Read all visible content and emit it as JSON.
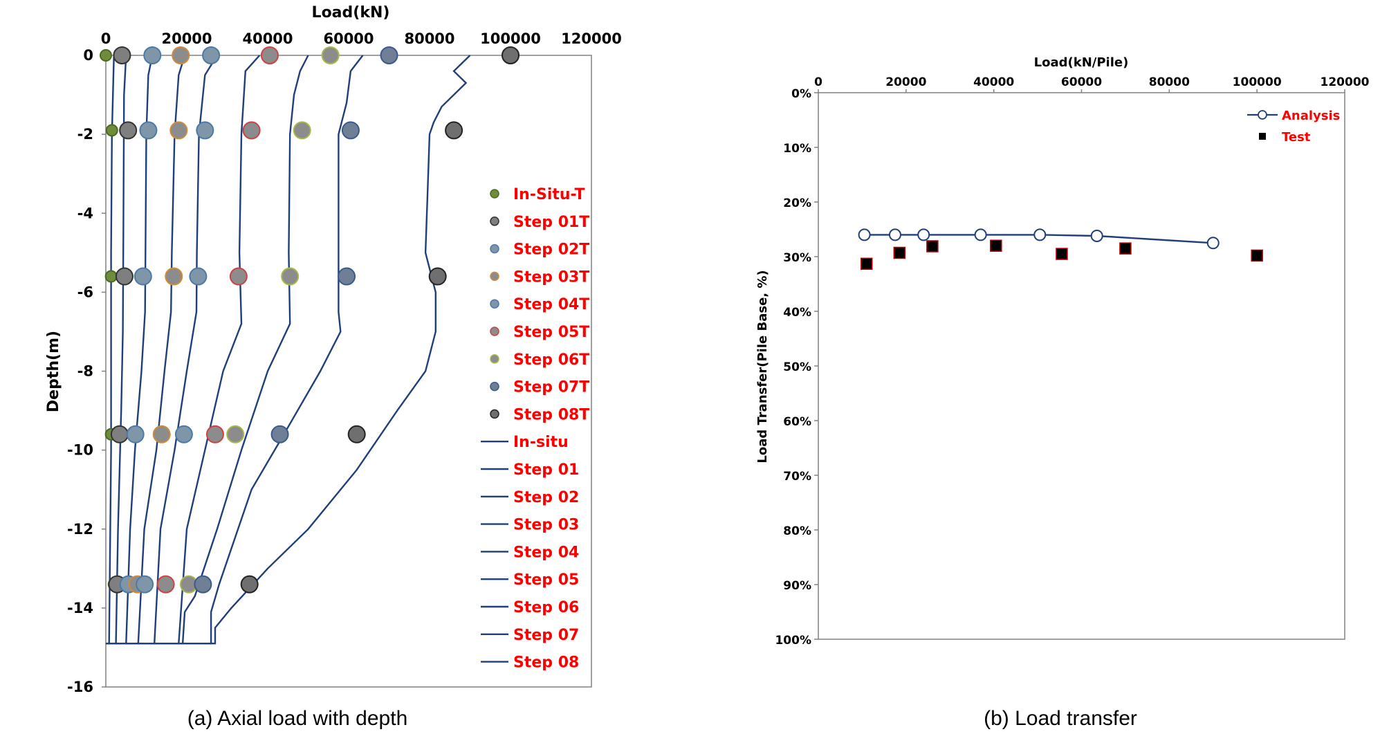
{
  "captions": {
    "a": "(a) Axial load with depth",
    "b": "(b) Load transfer"
  },
  "colors": {
    "line": "#1f3f7a",
    "legend_text": "#ff0000"
  },
  "chart_data": [
    {
      "type": "line",
      "xlabel": "Load(kN)",
      "ylabel": "Depth(m)",
      "xlim": [
        0,
        120000
      ],
      "ylim": [
        -16,
        0
      ],
      "xticks": [
        "0",
        "20000",
        "40000",
        "60000",
        "80000",
        "100000",
        "120000"
      ],
      "yticks": [
        "0",
        "-2",
        "-4",
        "-6",
        "-8",
        "-10",
        "-12",
        "-14",
        "-16"
      ],
      "legend_position": "right",
      "grid": false,
      "series": [
        {
          "name": "In-Situ-T",
          "kind": "marker",
          "fill": "#6e8c3c",
          "edge": "#4a6a22",
          "size": "small",
          "points": [
            [
              0,
              0
            ],
            [
              1500,
              -1.9
            ],
            [
              1300,
              -5.6
            ],
            [
              1300,
              -9.6
            ],
            [
              2000,
              -13.4
            ]
          ]
        },
        {
          "name": "Step 01T",
          "kind": "marker",
          "fill": "#7f7f7f",
          "edge": "#333333",
          "size": "large",
          "points": [
            [
              4000,
              0
            ],
            [
              5500,
              -1.9
            ],
            [
              4600,
              -5.6
            ],
            [
              3400,
              -9.6
            ],
            [
              2800,
              -13.4
            ]
          ]
        },
        {
          "name": "Step 02T",
          "kind": "marker",
          "fill": "#7f95a8",
          "edge": "#4a7aa8",
          "size": "large",
          "points": [
            [
              11500,
              0
            ],
            [
              10500,
              -1.9
            ],
            [
              9200,
              -5.6
            ],
            [
              7300,
              -9.6
            ],
            [
              5600,
              -13.4
            ]
          ]
        },
        {
          "name": "Step 03T",
          "kind": "marker",
          "fill": "#8c8c8c",
          "edge": "#d08a3a",
          "size": "large",
          "points": [
            [
              18500,
              0
            ],
            [
              18000,
              -1.9
            ],
            [
              16800,
              -5.6
            ],
            [
              13800,
              -9.6
            ],
            [
              7800,
              -13.4
            ]
          ]
        },
        {
          "name": "Step 04T",
          "kind": "marker",
          "fill": "#7f95a8",
          "edge": "#4a7aa8",
          "size": "large",
          "points": [
            [
              26000,
              0
            ],
            [
              24500,
              -1.9
            ],
            [
              22800,
              -5.6
            ],
            [
              19300,
              -9.6
            ],
            [
              9600,
              -13.4
            ]
          ]
        },
        {
          "name": "Step 05T",
          "kind": "marker",
          "fill": "#8c8c8c",
          "edge": "#d04040",
          "size": "large",
          "points": [
            [
              40500,
              0
            ],
            [
              36000,
              -1.9
            ],
            [
              32800,
              -5.6
            ],
            [
              27000,
              -9.6
            ],
            [
              14800,
              -13.4
            ]
          ]
        },
        {
          "name": "Step 06T",
          "kind": "marker",
          "fill": "#8c8c8c",
          "edge": "#a8b84a",
          "size": "large",
          "points": [
            [
              55500,
              0
            ],
            [
              48500,
              -1.9
            ],
            [
              45500,
              -5.6
            ],
            [
              32000,
              -9.6
            ],
            [
              20500,
              -13.4
            ]
          ]
        },
        {
          "name": "Step 07T",
          "kind": "marker",
          "fill": "#6f7f95",
          "edge": "#3a5a8a",
          "size": "large",
          "points": [
            [
              70000,
              0
            ],
            [
              60500,
              -1.9
            ],
            [
              59500,
              -5.6
            ],
            [
              43000,
              -9.6
            ],
            [
              24000,
              -13.4
            ]
          ]
        },
        {
          "name": "Step 08T",
          "kind": "marker",
          "fill": "#6f6f6f",
          "edge": "#222222",
          "size": "large",
          "points": [
            [
              100000,
              0
            ],
            [
              86000,
              -1.9
            ],
            [
              82000,
              -5.6
            ],
            [
              62000,
              -9.6
            ],
            [
              35500,
              -13.4
            ]
          ]
        },
        {
          "name": "In-situ",
          "kind": "line",
          "points": [
            [
              2000,
              0
            ],
            [
              1500,
              -2
            ],
            [
              1300,
              -5
            ],
            [
              1300,
              -10
            ],
            [
              800,
              -14.9
            ],
            [
              0,
              -14.9
            ]
          ]
        },
        {
          "name": "Step 01",
          "kind": "line",
          "points": [
            [
              5000,
              0
            ],
            [
              4500,
              -1
            ],
            [
              4300,
              -5
            ],
            [
              4200,
              -7
            ],
            [
              3800,
              -9
            ],
            [
              3000,
              -12
            ],
            [
              2500,
              -14.9
            ],
            [
              0,
              -14.9
            ]
          ]
        },
        {
          "name": "Step 02",
          "kind": "line",
          "points": [
            [
              11500,
              0
            ],
            [
              10500,
              -0.5
            ],
            [
              10000,
              -2
            ],
            [
              9800,
              -5
            ],
            [
              9700,
              -6.5
            ],
            [
              8800,
              -8
            ],
            [
              7200,
              -10
            ],
            [
              6000,
              -12
            ],
            [
              5000,
              -14.9
            ],
            [
              0,
              -14.9
            ]
          ]
        },
        {
          "name": "Step 03",
          "kind": "line",
          "points": [
            [
              19500,
              0
            ],
            [
              18000,
              -0.5
            ],
            [
              17000,
              -2
            ],
            [
              16300,
              -5
            ],
            [
              16100,
              -6.5
            ],
            [
              14500,
              -8
            ],
            [
              12500,
              -10
            ],
            [
              9500,
              -12
            ],
            [
              8000,
              -14.9
            ],
            [
              0,
              -14.9
            ]
          ]
        },
        {
          "name": "Step 04",
          "kind": "line",
          "points": [
            [
              27500,
              0
            ],
            [
              24500,
              -0.5
            ],
            [
              23000,
              -2
            ],
            [
              22500,
              -5
            ],
            [
              22400,
              -6.5
            ],
            [
              20000,
              -8
            ],
            [
              17000,
              -10
            ],
            [
              13500,
              -12
            ],
            [
              12000,
              -14.9
            ],
            [
              0,
              -14.9
            ]
          ]
        },
        {
          "name": "Step 05",
          "kind": "line",
          "points": [
            [
              38000,
              0
            ],
            [
              34500,
              -0.4
            ],
            [
              33500,
              -2
            ],
            [
              33000,
              -5
            ],
            [
              33500,
              -6.8
            ],
            [
              29000,
              -8
            ],
            [
              24500,
              -10
            ],
            [
              20000,
              -12
            ],
            [
              18000,
              -14.9
            ],
            [
              0,
              -14.9
            ]
          ]
        },
        {
          "name": "Step 06",
          "kind": "line",
          "points": [
            [
              50000,
              0
            ],
            [
              48000,
              -0.4
            ],
            [
              46500,
              -1
            ],
            [
              45500,
              -2
            ],
            [
              45200,
              -5
            ],
            [
              45500,
              -6.8
            ],
            [
              40000,
              -8
            ],
            [
              33500,
              -10
            ],
            [
              27500,
              -12
            ],
            [
              22000,
              -13.7
            ],
            [
              19500,
              -14.1
            ],
            [
              19000,
              -14.9
            ],
            [
              0,
              -14.9
            ]
          ]
        },
        {
          "name": "Step 07",
          "kind": "line",
          "points": [
            [
              63500,
              0
            ],
            [
              60500,
              -0.4
            ],
            [
              59500,
              -1.2
            ],
            [
              57500,
              -2
            ],
            [
              57500,
              -5
            ],
            [
              57500,
              -6.5
            ],
            [
              58000,
              -7
            ],
            [
              53000,
              -8
            ],
            [
              44000,
              -9.6
            ],
            [
              36000,
              -11
            ],
            [
              28000,
              -13.4
            ],
            [
              26000,
              -14.1
            ],
            [
              26000,
              -14.9
            ],
            [
              0,
              -14.9
            ]
          ]
        },
        {
          "name": "Step 08",
          "kind": "line",
          "points": [
            [
              90000,
              0
            ],
            [
              86000,
              -0.4
            ],
            [
              89000,
              -0.7
            ],
            [
              83000,
              -1.3
            ],
            [
              81000,
              -1.7
            ],
            [
              80000,
              -2
            ],
            [
              79500,
              -3.5
            ],
            [
              79000,
              -5
            ],
            [
              80500,
              -5.6
            ],
            [
              81500,
              -6
            ],
            [
              81500,
              -7
            ],
            [
              79000,
              -8
            ],
            [
              72000,
              -9
            ],
            [
              62000,
              -10.5
            ],
            [
              50000,
              -12
            ],
            [
              40000,
              -13
            ],
            [
              31000,
              -14
            ],
            [
              27000,
              -14.5
            ],
            [
              27000,
              -14.9
            ],
            [
              0,
              -14.9
            ]
          ]
        }
      ]
    },
    {
      "type": "line",
      "xlabel": "Load(kN/Pile)",
      "ylabel": "Load Transfer(Pile Base, %)",
      "xlim": [
        0,
        120000
      ],
      "ylim": [
        0,
        100
      ],
      "y_reversed": true,
      "xticks": [
        "0",
        "20000",
        "40000",
        "60000",
        "80000",
        "100000",
        "120000"
      ],
      "yticks": [
        "0%",
        "10%",
        "20%",
        "30%",
        "40%",
        "50%",
        "60%",
        "70%",
        "80%",
        "90%",
        "100%"
      ],
      "legend_position": "top-right",
      "grid": false,
      "series": [
        {
          "name": "Analysis",
          "kind": "line-open-circle",
          "x": [
            10500,
            17500,
            24000,
            37000,
            50500,
            63500,
            90000
          ],
          "y": [
            26.0,
            26.0,
            26.0,
            26.0,
            26.0,
            26.2,
            27.5
          ]
        },
        {
          "name": "Test",
          "kind": "square",
          "x": [
            11000,
            18500,
            26000,
            40500,
            55500,
            70000,
            100000
          ],
          "y": [
            31.3,
            29.3,
            28.1,
            28.0,
            29.5,
            28.5,
            29.8
          ]
        }
      ]
    }
  ]
}
